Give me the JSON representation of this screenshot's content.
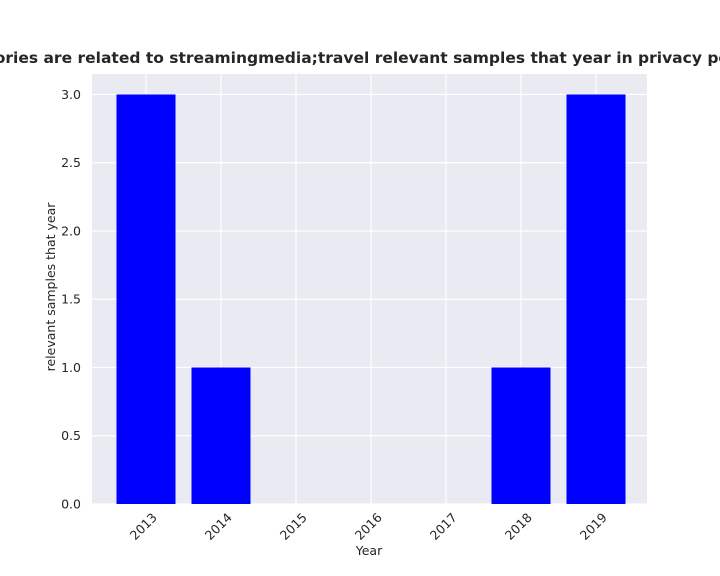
{
  "chart_data": {
    "type": "bar",
    "title": "categories are related to streamingmedia;travel relevant samples that year in privacy policies",
    "xlabel": "Year",
    "ylabel": "relevant samples that year",
    "categories": [
      "2013",
      "2014",
      "2015",
      "2016",
      "2017",
      "2018",
      "2019"
    ],
    "values": [
      3,
      1,
      0,
      0,
      0,
      1,
      3
    ],
    "ylim": [
      0,
      3.15
    ],
    "yticks": [
      "0.0",
      "0.5",
      "1.0",
      "1.5",
      "2.0",
      "2.5",
      "3.0"
    ],
    "grid": true,
    "bar_color": "#0000ff",
    "background_color": "#eaeaf2",
    "grid_color": "#ffffff"
  }
}
